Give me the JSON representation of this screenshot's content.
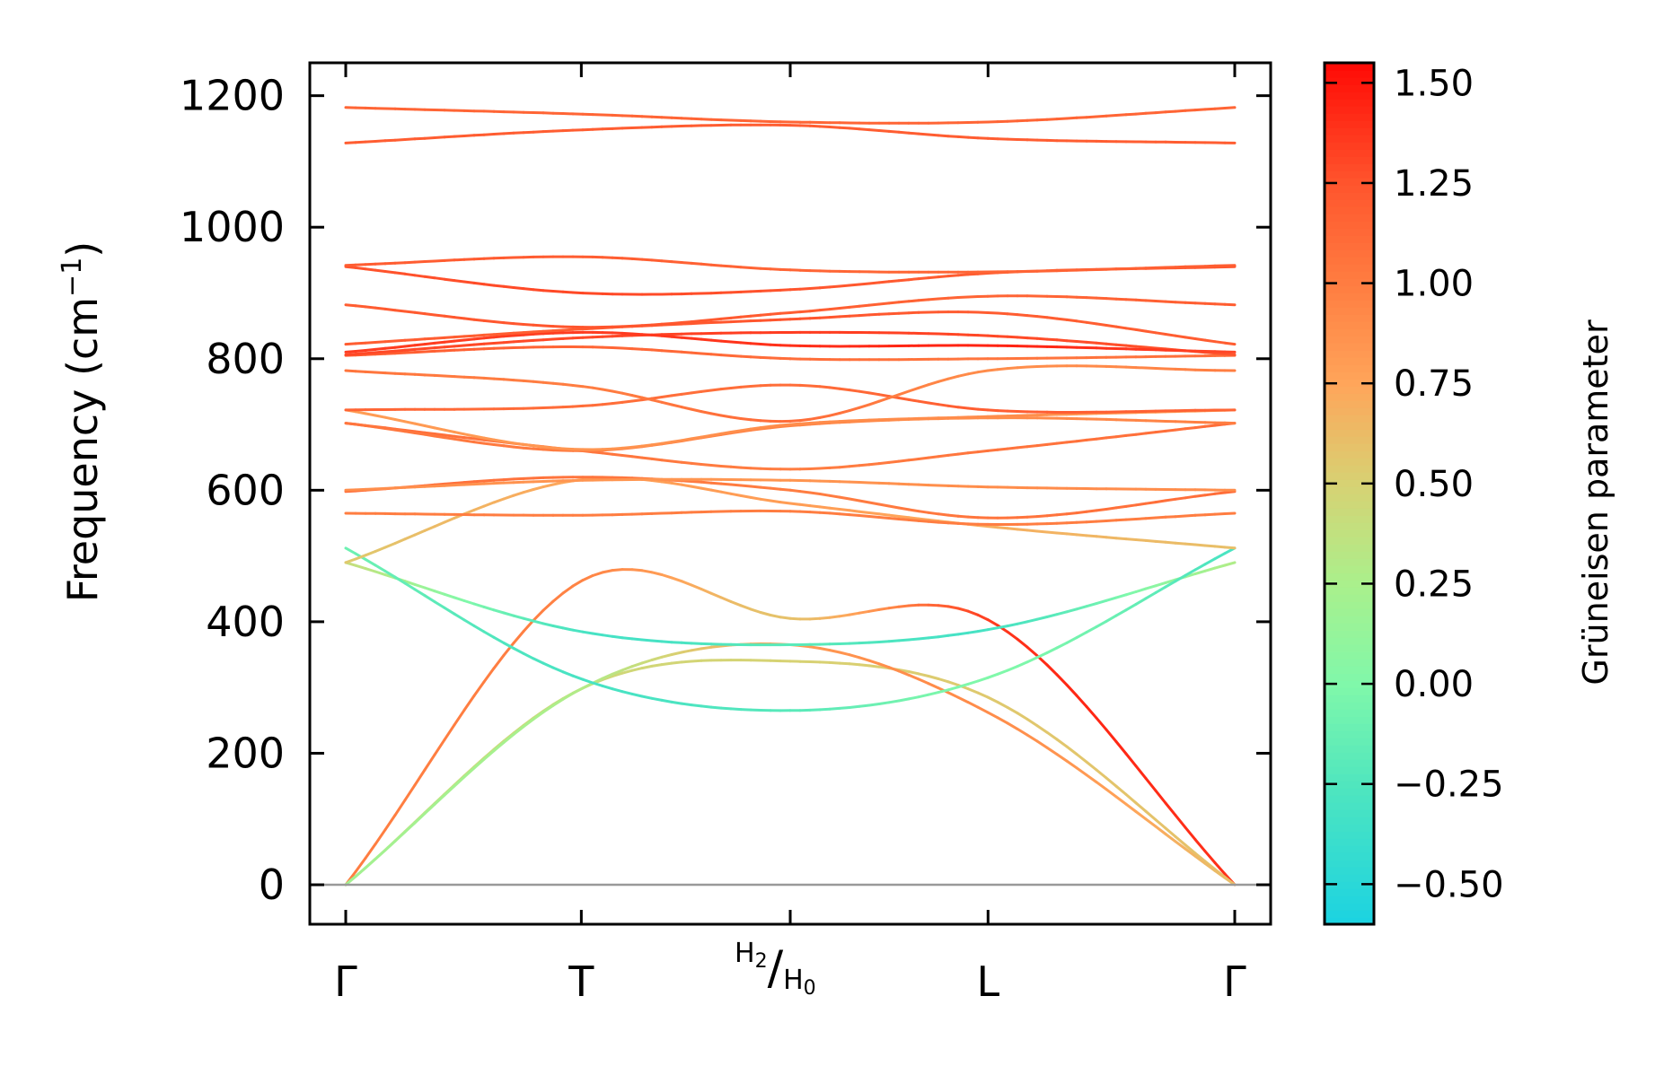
{
  "chart_data": {
    "type": "line",
    "title": "",
    "ylabel": "Frequency (cm",
    "ylabel_sup": "−1",
    "ylabel_close": ")",
    "ylim": [
      -60,
      1250
    ],
    "yticks": [
      0,
      200,
      400,
      600,
      800,
      1000,
      1200
    ],
    "ytick_labels": [
      "0",
      "200",
      "400",
      "600",
      "800",
      "1000",
      "1200"
    ],
    "xlim": [
      0,
      4
    ],
    "xticks": [
      {
        "pos": 0,
        "label": "Γ"
      },
      {
        "pos": 1.06,
        "label": "T"
      },
      {
        "pos": 2.0,
        "label": "H2/H0",
        "main": "/",
        "left": "H",
        "left_sub": "2",
        "right": "H",
        "right_sub": "0"
      },
      {
        "pos": 2.89,
        "label": "L"
      },
      {
        "pos": 4.0,
        "label": "Γ"
      }
    ],
    "zero_line": true,
    "grid": false,
    "colorbar": {
      "label": "Grüneisen parameter",
      "range": [
        -0.6,
        1.55
      ],
      "ticks": [
        1.5,
        1.25,
        1.0,
        0.75,
        0.5,
        0.25,
        0.0,
        -0.25,
        -0.5
      ],
      "tick_labels": [
        "1.50",
        "1.25",
        "1.00",
        "0.75",
        "0.50",
        "0.25",
        "0.00",
        "−0.25",
        "−0.50"
      ],
      "colormap": "rainbow"
    },
    "x": [
      0,
      1.06,
      2.0,
      2.89,
      4.0
    ],
    "series": [
      {
        "values": [
          0,
          462,
          405,
          403,
          0
        ],
        "gamma": [
          1.0,
          0.95,
          0.6,
          1.35,
          1.4
        ]
      },
      {
        "values": [
          0,
          298,
          340,
          285,
          0
        ],
        "gamma": [
          0.4,
          0.45,
          0.5,
          0.55,
          0.6
        ]
      },
      {
        "values": [
          0,
          298,
          365,
          262,
          0
        ],
        "gamma": [
          0.2,
          0.3,
          0.8,
          0.9,
          0.6
        ]
      },
      {
        "values": [
          490,
          385,
          365,
          388,
          490
        ],
        "gamma": [
          0.4,
          -0.3,
          -0.2,
          -0.3,
          0.3
        ]
      },
      {
        "values": [
          512,
          313,
          265,
          315,
          512
        ],
        "gamma": [
          -0.1,
          -0.3,
          -0.2,
          0.0,
          -0.3
        ]
      },
      {
        "values": [
          490,
          616,
          580,
          545,
          512
        ],
        "gamma": [
          0.55,
          0.75,
          0.8,
          0.7,
          0.6
        ]
      },
      {
        "values": [
          565,
          562,
          568,
          548,
          565
        ],
        "gamma": [
          1.0,
          1.0,
          1.0,
          1.0,
          1.0
        ]
      },
      {
        "values": [
          598,
          620,
          600,
          558,
          598
        ],
        "gamma": [
          1.1,
          1.05,
          1.0,
          1.05,
          1.1
        ]
      },
      {
        "values": [
          600,
          615,
          615,
          605,
          600
        ],
        "gamma": [
          0.9,
          0.85,
          0.85,
          0.9,
          0.9
        ]
      },
      {
        "values": [
          702,
          660,
          632,
          660,
          702
        ],
        "gamma": [
          1.1,
          1.05,
          1.0,
          1.05,
          1.1
        ]
      },
      {
        "values": [
          702,
          660,
          698,
          710,
          702
        ],
        "gamma": [
          1.05,
          1.0,
          0.95,
          0.9,
          1.0
        ]
      },
      {
        "values": [
          722,
          662,
          700,
          712,
          722
        ],
        "gamma": [
          0.8,
          0.85,
          0.9,
          0.9,
          0.8
        ]
      },
      {
        "values": [
          722,
          728,
          760,
          722,
          722
        ],
        "gamma": [
          1.15,
          1.1,
          1.1,
          1.2,
          1.15
        ]
      },
      {
        "values": [
          782,
          758,
          705,
          782,
          782
        ],
        "gamma": [
          1.05,
          1.0,
          1.1,
          0.9,
          1.0
        ]
      },
      {
        "values": [
          805,
          818,
          800,
          800,
          805
        ],
        "gamma": [
          1.2,
          1.15,
          1.1,
          1.05,
          1.1
        ]
      },
      {
        "values": [
          806,
          832,
          840,
          835,
          806
        ],
        "gamma": [
          1.3,
          1.3,
          1.35,
          1.3,
          1.25
        ]
      },
      {
        "values": [
          810,
          840,
          820,
          820,
          810
        ],
        "gamma": [
          1.35,
          1.35,
          1.4,
          1.45,
          1.3
        ]
      },
      {
        "values": [
          822,
          845,
          860,
          870,
          822
        ],
        "gamma": [
          1.2,
          1.2,
          1.25,
          1.2,
          1.2
        ]
      },
      {
        "values": [
          882,
          848,
          870,
          895,
          882
        ],
        "gamma": [
          1.2,
          1.25,
          1.2,
          1.15,
          1.2
        ]
      },
      {
        "values": [
          940,
          900,
          905,
          930,
          940
        ],
        "gamma": [
          1.25,
          1.3,
          1.25,
          1.2,
          1.25
        ]
      },
      {
        "values": [
          942,
          955,
          935,
          932,
          942
        ],
        "gamma": [
          1.2,
          1.2,
          1.15,
          1.15,
          1.2
        ]
      },
      {
        "values": [
          1128,
          1148,
          1155,
          1135,
          1128
        ],
        "gamma": [
          1.2,
          1.2,
          1.2,
          1.2,
          1.2
        ]
      },
      {
        "values": [
          1182,
          1172,
          1160,
          1160,
          1182
        ],
        "gamma": [
          1.15,
          1.15,
          1.15,
          1.15,
          1.15
        ]
      }
    ]
  }
}
